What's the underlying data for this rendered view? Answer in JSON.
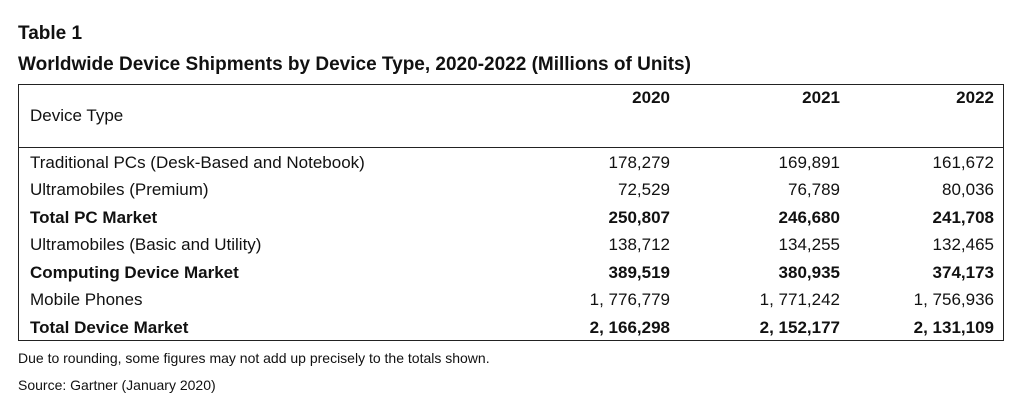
{
  "table_label": "Table 1",
  "table_title": "Worldwide Device Shipments by Device Type, 2020-2022 (Millions of Units)",
  "header": {
    "row_label": "Device Type",
    "years": [
      "2020",
      "2021",
      "2022"
    ]
  },
  "rows": [
    {
      "label": "Traditional PCs (Desk-Based and Notebook)",
      "bold": false,
      "values": [
        "178,279",
        "169,891",
        "161,672"
      ]
    },
    {
      "label": "Ultramobiles (Premium)",
      "bold": false,
      "values": [
        "72,529",
        "76,789",
        "80,036"
      ]
    },
    {
      "label": "Total PC Market",
      "bold": true,
      "values": [
        "250,807",
        "246,680",
        "241,708"
      ]
    },
    {
      "label": "Ultramobiles (Basic and Utility)",
      "bold": false,
      "values": [
        "138,712",
        "134,255",
        "132,465"
      ]
    },
    {
      "label": "Computing Device Market",
      "bold": true,
      "values": [
        "389,519",
        "380,935",
        "374,173"
      ]
    },
    {
      "label": "Mobile Phones",
      "bold": false,
      "values": [
        "1, 776,779",
        "1, 771,242",
        "1, 756,936"
      ]
    },
    {
      "label": "Total Device Market",
      "bold": true,
      "values": [
        "2, 166,298",
        "2, 152,177",
        "2, 131,109"
      ]
    }
  ],
  "footnote": "Due to rounding, some figures may not add up precisely to the totals shown.",
  "source": "Source: Gartner (January 2020)"
}
